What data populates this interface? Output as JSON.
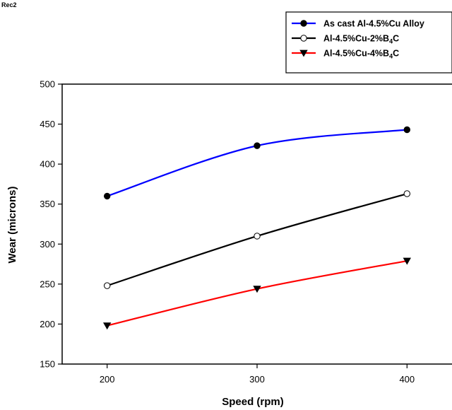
{
  "corner_label": "Rec2",
  "chart_data": {
    "type": "line",
    "title": "",
    "xlabel": "Speed (rpm)",
    "ylabel": "Wear (microns)",
    "x": [
      200,
      300,
      400
    ],
    "xticks": [
      "200",
      "300",
      "400"
    ],
    "xlim": [
      170,
      430
    ],
    "ylim": [
      150,
      500
    ],
    "yticks": [
      "150",
      "200",
      "250",
      "300",
      "350",
      "400",
      "450",
      "500"
    ],
    "grid": false,
    "legend_position": "top-right",
    "series": [
      {
        "name_main": "As cast Al-4.5%Cu Alloy",
        "name_sub": "",
        "name_tail": "",
        "values": [
          360,
          423,
          443
        ],
        "color": "#0000ff",
        "marker": "filled-circle"
      },
      {
        "name_main": "Al-4.5%Cu-2%B",
        "name_sub": "4",
        "name_tail": "C",
        "values": [
          248,
          310,
          363
        ],
        "color": "#000000",
        "marker": "open-circle"
      },
      {
        "name_main": "Al-4.5%Cu-4%B",
        "name_sub": "4",
        "name_tail": "C",
        "values": [
          198,
          244,
          279
        ],
        "color": "#ff0000",
        "marker": "filled-triangle-down"
      }
    ]
  }
}
